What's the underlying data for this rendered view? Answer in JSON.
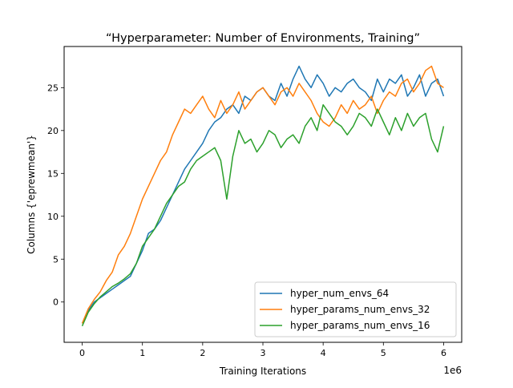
{
  "chart_data": {
    "type": "line",
    "title": "“Hyperparameter: Number of Environments, Training”",
    "xlabel": "Training Iterations",
    "ylabel": "Columns {'eprewmean'}",
    "x_offset_label": "1e6",
    "xlim": [
      -300000,
      6300000
    ],
    "ylim": [
      -4.7,
      29.8
    ],
    "xticks": [
      0,
      1000000,
      2000000,
      3000000,
      4000000,
      5000000,
      6000000
    ],
    "xtick_labels": [
      "0",
      "1",
      "2",
      "3",
      "4",
      "5",
      "6"
    ],
    "yticks": [
      0,
      5,
      10,
      15,
      20,
      25
    ],
    "ytick_labels": [
      "0",
      "5",
      "10",
      "15",
      "20",
      "25"
    ],
    "grid": false,
    "legend_position": "lower-right",
    "x": [
      0,
      100000,
      200000,
      300000,
      400000,
      500000,
      600000,
      700000,
      800000,
      900000,
      1000000,
      1100000,
      1200000,
      1300000,
      1400000,
      1500000,
      1600000,
      1700000,
      1800000,
      1900000,
      2000000,
      2100000,
      2200000,
      2300000,
      2400000,
      2500000,
      2600000,
      2700000,
      2800000,
      2900000,
      3000000,
      3100000,
      3200000,
      3300000,
      3400000,
      3500000,
      3600000,
      3700000,
      3800000,
      3900000,
      4000000,
      4100000,
      4200000,
      4300000,
      4400000,
      4500000,
      4600000,
      4700000,
      4800000,
      4900000,
      5000000,
      5100000,
      5200000,
      5300000,
      5400000,
      5500000,
      5600000,
      5700000,
      5800000,
      5900000,
      6000000
    ],
    "series": [
      {
        "name": "hyper_num_envs_64",
        "color": "#1f77b4",
        "values": [
          -2.5,
          -1.0,
          0.0,
          0.5,
          1.0,
          1.5,
          2.0,
          2.5,
          3.0,
          4.5,
          6.0,
          8.0,
          8.5,
          9.5,
          11.0,
          12.5,
          14.0,
          15.5,
          16.5,
          17.5,
          18.5,
          20.0,
          21.0,
          21.5,
          22.5,
          23.0,
          22.0,
          24.0,
          23.5,
          24.5,
          25.0,
          24.0,
          23.5,
          25.5,
          24.0,
          26.0,
          27.5,
          26.0,
          25.0,
          26.5,
          25.5,
          24.0,
          25.0,
          24.5,
          25.5,
          26.0,
          25.0,
          24.5,
          23.5,
          26.0,
          24.5,
          26.0,
          25.5,
          26.5,
          24.0,
          25.0,
          26.5,
          24.0,
          25.5,
          26.0,
          24.0
        ]
      },
      {
        "name": "hyper_params_num_envs_32",
        "color": "#ff7f0e",
        "values": [
          -2.5,
          -0.8,
          0.3,
          1.2,
          2.5,
          3.5,
          5.5,
          6.5,
          8.0,
          10.0,
          12.0,
          13.5,
          15.0,
          16.5,
          17.5,
          19.5,
          21.0,
          22.5,
          22.0,
          23.0,
          24.0,
          22.5,
          21.5,
          23.5,
          22.0,
          23.0,
          24.5,
          22.5,
          23.5,
          24.5,
          25.0,
          24.0,
          23.0,
          24.5,
          25.0,
          24.0,
          25.5,
          24.5,
          23.5,
          22.0,
          21.0,
          20.5,
          21.5,
          23.0,
          22.0,
          23.5,
          22.5,
          23.0,
          24.0,
          22.0,
          23.5,
          24.5,
          24.0,
          25.5,
          26.0,
          24.5,
          25.5,
          27.0,
          27.5,
          25.5,
          25.0
        ]
      },
      {
        "name": "hyper_params_num_envs_16",
        "color": "#2ca02c",
        "values": [
          -2.8,
          -1.2,
          -0.2,
          0.6,
          1.2,
          1.8,
          2.2,
          2.7,
          3.3,
          4.5,
          6.5,
          7.5,
          8.5,
          10.0,
          11.5,
          12.5,
          13.5,
          14.0,
          15.5,
          16.5,
          17.0,
          17.5,
          18.0,
          16.5,
          12.0,
          17.0,
          20.0,
          18.5,
          19.0,
          17.5,
          18.5,
          20.0,
          19.5,
          18.0,
          19.0,
          19.5,
          18.5,
          20.5,
          21.5,
          20.0,
          23.0,
          22.0,
          21.0,
          20.5,
          19.5,
          20.5,
          22.0,
          21.5,
          20.5,
          22.5,
          21.0,
          19.5,
          21.5,
          20.0,
          22.0,
          20.5,
          21.5,
          22.0,
          19.0,
          17.5,
          20.5
        ]
      }
    ]
  }
}
